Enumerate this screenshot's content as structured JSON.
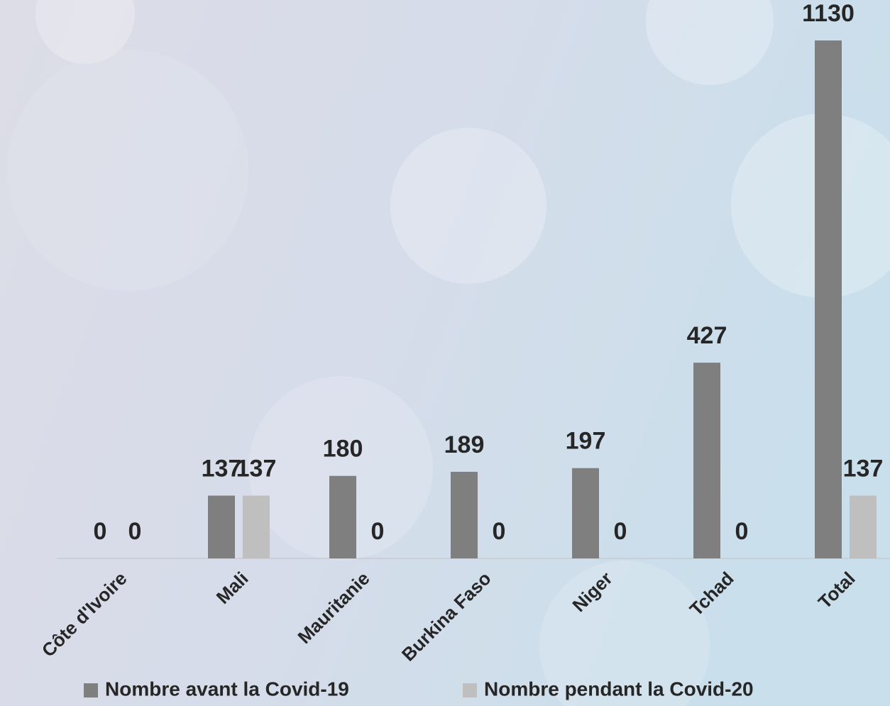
{
  "chart_data": {
    "type": "bar",
    "categories": [
      "Côte d'Ivoire",
      "Mali",
      "Mauritanie",
      "Burkina Faso",
      "Niger",
      "Tchad",
      "Total"
    ],
    "series": [
      {
        "name": "Nombre avant la Covid-19",
        "color": "#7f7f7f",
        "values": [
          0,
          137,
          180,
          189,
          197,
          427,
          1130
        ]
      },
      {
        "name": "Nombre pendant la Covid-20",
        "color": "#bfbfbf",
        "values": [
          0,
          137,
          0,
          0,
          0,
          0,
          137
        ]
      }
    ]
  }
}
